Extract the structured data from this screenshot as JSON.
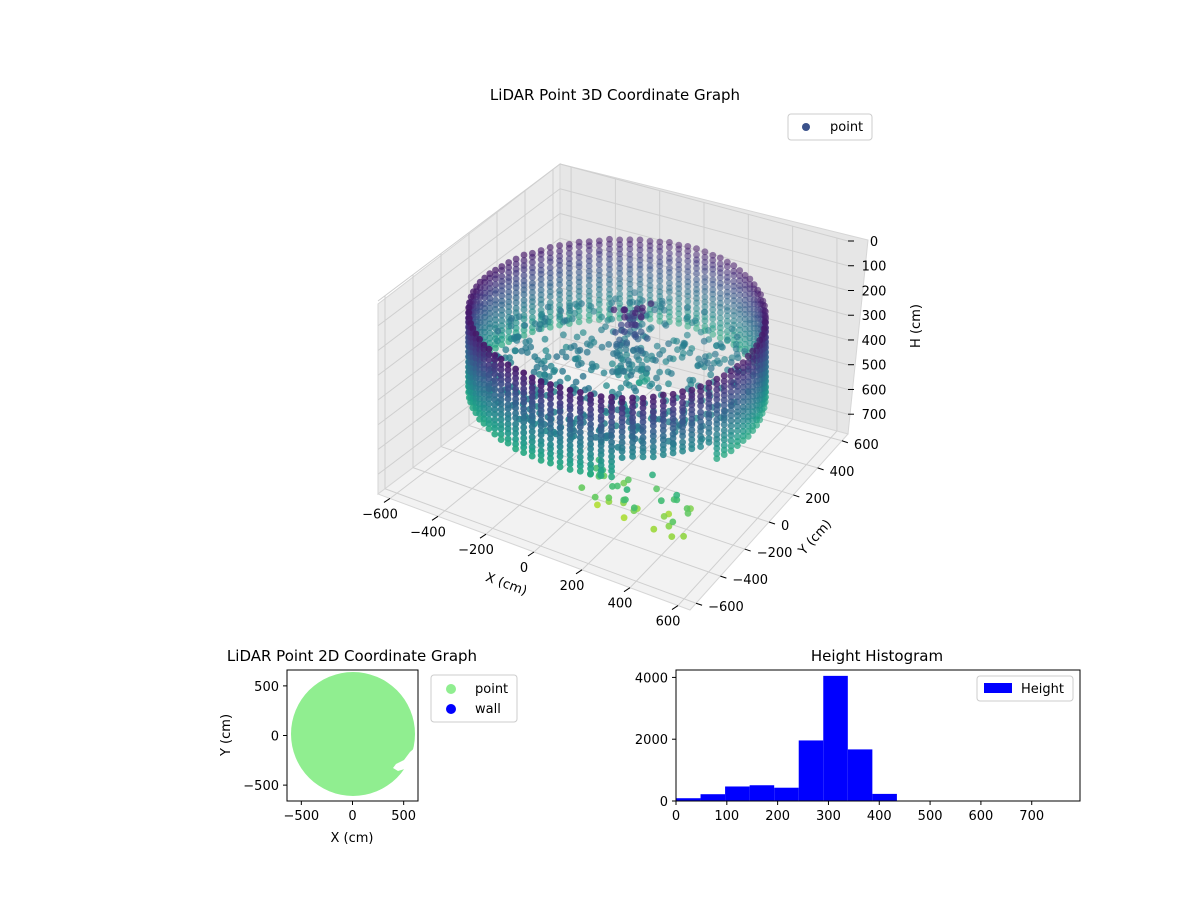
{
  "colors": {
    "point_3d_legend": "#3b528b",
    "point_2d": "#90ee90",
    "wall_2d": "#0000ff",
    "hist_bar": "#0000ff",
    "pane": "#f2f2f2",
    "grid": "#cccccc"
  },
  "chart_data": [
    {
      "type": "scatter",
      "projection": "3d",
      "title": "LiDAR Point 3D Coordinate Graph",
      "xlabel": "X (cm)",
      "ylabel": "Y (cm)",
      "zlabel": "H (cm)",
      "xticks": [
        "−600",
        "−400",
        "−200",
        "0",
        "200",
        "400",
        "600"
      ],
      "yticks": [
        "−600",
        "−400",
        "−200",
        "0",
        "200",
        "400",
        "600"
      ],
      "zticks": [
        "0",
        "100",
        "200",
        "300",
        "400",
        "500",
        "600",
        "700"
      ],
      "xlim": [
        -650,
        650
      ],
      "ylim": [
        -650,
        650
      ],
      "zlim": [
        0,
        780
      ],
      "z_inverted": true,
      "colormap": "viridis",
      "legend": {
        "position": "top-right",
        "entries": [
          "point"
        ]
      },
      "grid": true,
      "description": "Cylindrical ring of points (radius ≈ 550 cm, heights ≈ 150–450 cm) with an inner floor cluster and an obstacle column near the center"
    },
    {
      "type": "scatter",
      "title": "LiDAR Point 2D Coordinate Graph",
      "xlabel": "X (cm)",
      "ylabel": "Y (cm)",
      "xticks": [
        "−500",
        "0",
        "500"
      ],
      "yticks": [
        "500",
        "0",
        "−500"
      ],
      "xlim": [
        -640,
        640
      ],
      "ylim": [
        -660,
        660
      ],
      "series": [
        {
          "name": "point",
          "color": "#90ee90",
          "shape": "filled disc, radius ≈ 610 cm, notch near (450, −200)"
        },
        {
          "name": "wall",
          "color": "#0000ff",
          "values": []
        }
      ],
      "legend": {
        "position": "outside-right",
        "entries": [
          "point",
          "wall"
        ]
      },
      "grid": false
    },
    {
      "type": "bar",
      "title": "Height Histogram",
      "xticks": [
        "0",
        "100",
        "200",
        "300",
        "400",
        "500",
        "600",
        "700"
      ],
      "yticks": [
        "0",
        "2000",
        "4000"
      ],
      "xlim": [
        0,
        795
      ],
      "ylim": [
        0,
        4240
      ],
      "bin_width": 48.3,
      "bins": [
        {
          "x0": 0,
          "value": 90
        },
        {
          "x0": 48.3,
          "value": 220
        },
        {
          "x0": 96.6,
          "value": 470
        },
        {
          "x0": 144.9,
          "value": 510
        },
        {
          "x0": 193.2,
          "value": 430
        },
        {
          "x0": 241.5,
          "value": 1960
        },
        {
          "x0": 289.8,
          "value": 4050
        },
        {
          "x0": 338.1,
          "value": 1670
        },
        {
          "x0": 386.4,
          "value": 230
        },
        {
          "x0": 434.7,
          "value": 10
        },
        {
          "x0": 483.0,
          "value": 3
        },
        {
          "x0": 531.3,
          "value": 2
        },
        {
          "x0": 579.6,
          "value": 2
        },
        {
          "x0": 627.9,
          "value": 1
        },
        {
          "x0": 676.2,
          "value": 1
        },
        {
          "x0": 724.5,
          "value": 1
        }
      ],
      "series": [
        {
          "name": "Height",
          "color": "#0000ff"
        }
      ],
      "legend": {
        "position": "top-right",
        "entries": [
          "Height"
        ]
      },
      "grid": false
    }
  ]
}
